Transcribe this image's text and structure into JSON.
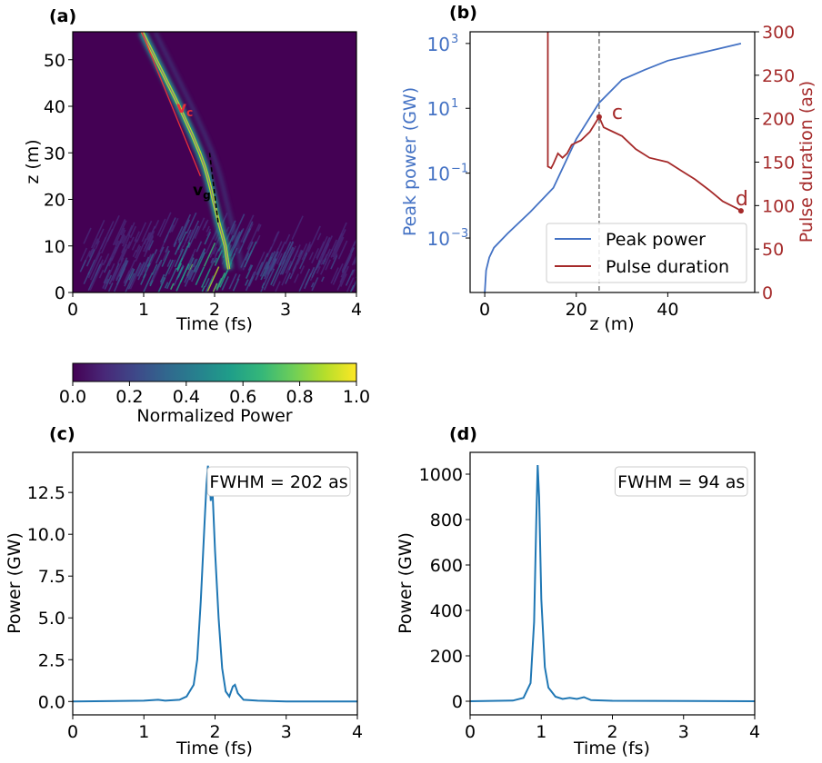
{
  "chart_data": [
    {
      "panel": "(a)",
      "type": "heatmap",
      "xlabel": "Time (fs)",
      "ylabel": "z (m)",
      "xlim": [
        0,
        4
      ],
      "ylim": [
        0,
        56
      ],
      "xticks": [
        "0",
        "1",
        "2",
        "3",
        "4"
      ],
      "yticks": [
        "0",
        "10",
        "20",
        "30",
        "40",
        "50"
      ],
      "colormap": "viridis",
      "colorbar": {
        "label": "Normalized Power",
        "range": [
          0,
          1
        ],
        "ticks": [
          "0.0",
          "0.2",
          "0.4",
          "0.6",
          "0.8",
          "1.0"
        ]
      },
      "pulse_track": {
        "z": [
          56,
          48,
          40,
          34,
          30,
          27,
          25,
          22,
          20,
          15,
          10,
          5
        ],
        "t": [
          0.98,
          1.24,
          1.5,
          1.68,
          1.79,
          1.86,
          1.9,
          1.95,
          1.98,
          2.06,
          2.15,
          2.2
        ]
      },
      "annotations": [
        {
          "text": "v",
          "sub": "c",
          "color": "#e8303a",
          "line": {
            "z": [
              56,
              25
            ],
            "t": [
              0.97,
              1.8
            ]
          }
        },
        {
          "text": "v",
          "sub": "g",
          "color": "#000000",
          "line": {
            "z": [
              30,
              15
            ],
            "t": [
              1.93,
              2.05
            ]
          },
          "dashed": true
        }
      ]
    },
    {
      "panel": "(b)",
      "type": "line",
      "xlabel": "z (m)",
      "xlim": [
        -3.2,
        59
      ],
      "xticks": [
        "0",
        "20",
        "40"
      ],
      "ylabel": "Peak power (GW)",
      "yscale": "log",
      "ylim_log10": [
        -4.68,
        3.36
      ],
      "yticks": [
        "10^3",
        "10^1",
        "10^-1",
        "10^-3"
      ],
      "ylabel_right": "Pulse duration (as)",
      "ylim_right": [
        0,
        300
      ],
      "yticks_right": [
        "0",
        "50",
        "100",
        "150",
        "200",
        "250",
        "300"
      ],
      "vline_z": 25,
      "legend": {
        "placement": "lower-right",
        "entries": [
          "Peak power",
          "Pulse duration"
        ]
      },
      "series": [
        {
          "name": "Peak power",
          "color": "#4472c4",
          "axis": "left",
          "z": [
            0,
            0.3,
            1,
            2,
            5,
            10,
            15,
            20,
            25,
            30,
            35,
            40,
            50,
            56
          ],
          "log10_GW": [
            -4.7,
            -4.0,
            -3.6,
            -3.3,
            -2.86,
            -2.19,
            -1.45,
            0.05,
            1.17,
            1.88,
            2.19,
            2.47,
            2.8,
            3.0
          ]
        },
        {
          "name": "Pulse duration",
          "color": "#a52a2a",
          "axis": "right",
          "z": [
            13.8,
            13.8,
            14.5,
            15,
            16,
            17,
            18,
            19,
            21,
            23,
            25,
            26,
            28,
            30,
            33,
            36,
            40,
            43,
            46,
            49,
            52,
            55,
            56
          ],
          "as": [
            300,
            145,
            143,
            148,
            160,
            155,
            160,
            170,
            175,
            185,
            202,
            190,
            185,
            180,
            165,
            155,
            150,
            140,
            130,
            118,
            105,
            97,
            94
          ]
        }
      ],
      "markers": [
        {
          "label": "c",
          "z": 25,
          "as": 202
        },
        {
          "label": "d",
          "z": 56,
          "as": 94
        }
      ]
    },
    {
      "panel": "(c)",
      "type": "line",
      "xlabel": "Time (fs)",
      "ylabel": "Power (GW)",
      "xlim": [
        0,
        4
      ],
      "ylim": [
        -0.8,
        14.9
      ],
      "xticks": [
        "0",
        "1",
        "2",
        "3",
        "4"
      ],
      "yticks": [
        "0.0",
        "2.5",
        "5.0",
        "7.5",
        "10.0",
        "12.5"
      ],
      "annotation": "FWHM = 202 as",
      "color": "#1f77b4",
      "x": [
        0,
        1.0,
        1.2,
        1.3,
        1.5,
        1.6,
        1.7,
        1.75,
        1.8,
        1.85,
        1.88,
        1.9,
        1.92,
        1.94,
        1.96,
        2.0,
        2.05,
        2.1,
        2.15,
        2.2,
        2.25,
        2.28,
        2.32,
        2.4,
        2.6,
        3,
        4
      ],
      "y": [
        0,
        0.05,
        0.1,
        0.05,
        0.1,
        0.3,
        1.0,
        2.5,
        6,
        10.5,
        13,
        14.1,
        13.4,
        12,
        13,
        9,
        5,
        2,
        0.6,
        0.3,
        0.9,
        1.0,
        0.5,
        0.1,
        0.05,
        0,
        0
      ]
    },
    {
      "panel": "(d)",
      "type": "line",
      "xlabel": "Time (fs)",
      "ylabel": "Power (GW)",
      "xlim": [
        0,
        4
      ],
      "ylim": [
        -60,
        1096
      ],
      "xticks": [
        "0",
        "1",
        "2",
        "3",
        "4"
      ],
      "yticks": [
        "0",
        "200",
        "400",
        "600",
        "800",
        "1000"
      ],
      "annotation": "FWHM = 94 as",
      "color": "#1f77b4",
      "x": [
        0,
        0.6,
        0.75,
        0.85,
        0.9,
        0.93,
        0.95,
        0.97,
        1.0,
        1.05,
        1.1,
        1.2,
        1.3,
        1.4,
        1.5,
        1.6,
        1.7,
        2,
        4
      ],
      "y": [
        0,
        3,
        15,
        80,
        350,
        800,
        1040,
        900,
        450,
        150,
        60,
        20,
        10,
        15,
        10,
        18,
        5,
        2,
        0
      ]
    }
  ]
}
